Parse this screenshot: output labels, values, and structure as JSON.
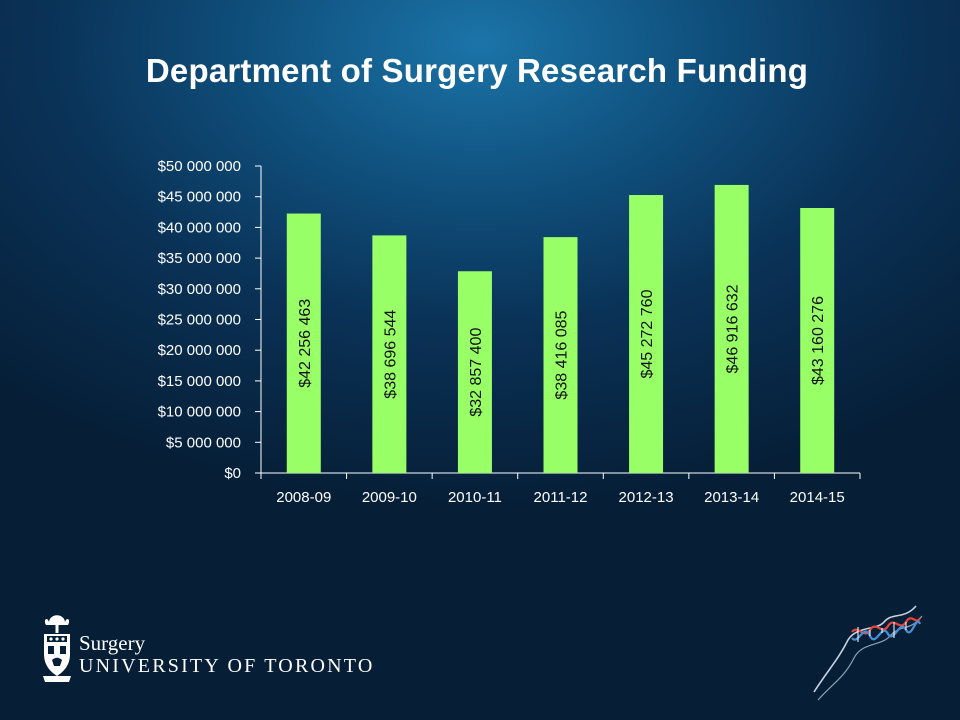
{
  "slide": {
    "title": "Department of Surgery Research Funding"
  },
  "logo": {
    "department": "Surgery",
    "university": "UNIVERSITY OF TORONTO"
  },
  "colors": {
    "bar": "#99ff66",
    "axis": "#ffffff",
    "label_text": "#111111"
  },
  "chart_data": {
    "type": "bar",
    "title": "Department of Surgery Research Funding",
    "categories": [
      "2008-09",
      "2009-10",
      "2010-11",
      "2011-12",
      "2012-13",
      "2013-14",
      "2014-15"
    ],
    "values": [
      42256463,
      38696544,
      32857400,
      38416085,
      45272760,
      46916632,
      43160276
    ],
    "data_labels": [
      "$42 256 463",
      "$38 696 544",
      "$32 857 400",
      "$38 416 085",
      "$45 272 760",
      "$46 916 632",
      "$43 160 276"
    ],
    "y_ticks": [
      {
        "value": 0,
        "label": "$0"
      },
      {
        "value": 5000000,
        "label": "$5 000 000"
      },
      {
        "value": 10000000,
        "label": "$10 000 000"
      },
      {
        "value": 15000000,
        "label": "$15 000 000"
      },
      {
        "value": 20000000,
        "label": "$20 000 000"
      },
      {
        "value": 25000000,
        "label": "$25 000 000"
      },
      {
        "value": 30000000,
        "label": "$30 000 000"
      },
      {
        "value": 35000000,
        "label": "$35 000 000"
      },
      {
        "value": 40000000,
        "label": "$40 000 000"
      },
      {
        "value": 45000000,
        "label": "$45 000 000"
      },
      {
        "value": 50000000,
        "label": "$50 000 000"
      }
    ],
    "ylim": [
      0,
      50000000
    ],
    "xlabel": "",
    "ylabel": "",
    "grid": false,
    "legend": "none",
    "data_label_orientation": "vertical"
  }
}
